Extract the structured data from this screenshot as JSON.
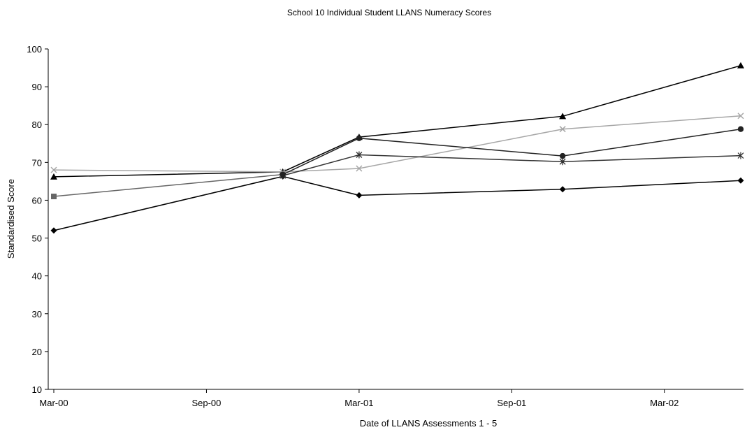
{
  "chart_data": {
    "type": "line",
    "title": "School 10 Individual Student LLANS Numeracy Scores",
    "xlabel": "Date of LLANS Assessments 1 - 5",
    "ylabel": "Standardised Score",
    "ylim": [
      10,
      100
    ],
    "yticks": [
      10,
      20,
      30,
      40,
      50,
      60,
      70,
      80,
      90,
      100
    ],
    "xlim": [
      "2000-03",
      "2002-06"
    ],
    "xticks": [
      {
        "date": "2000-03",
        "label": "Mar-00"
      },
      {
        "date": "2000-09",
        "label": "Sep-00"
      },
      {
        "date": "2001-03",
        "label": "Mar-01"
      },
      {
        "date": "2001-09",
        "label": "Sep-01"
      },
      {
        "date": "2002-03",
        "label": "Mar-02"
      }
    ],
    "x": [
      "2000-03",
      "2000-12",
      "2001-03",
      "2001-11",
      "2002-06"
    ],
    "grid": false,
    "legend": "none",
    "series": [
      {
        "marker": "diamond",
        "color": "#000000",
        "values": [
          52,
          66.3,
          61.3,
          62.9,
          65.2
        ]
      },
      {
        "marker": "square",
        "color": "#666666",
        "values": [
          61,
          66.8,
          null,
          null,
          null
        ]
      },
      {
        "marker": "triangle",
        "color": "#000000",
        "values": [
          66.2,
          67.5,
          76.7,
          82.2,
          95.6
        ]
      },
      {
        "marker": "x",
        "color": "#a6a6a6",
        "values": [
          68,
          67.5,
          68.4,
          78.8,
          82.3
        ]
      },
      {
        "marker": "star",
        "color": "#333333",
        "values": [
          null,
          66.5,
          72,
          70.2,
          71.8
        ]
      },
      {
        "marker": "circle",
        "color": "#222222",
        "values": [
          null,
          66.8,
          76.4,
          71.7,
          78.8
        ]
      }
    ]
  }
}
